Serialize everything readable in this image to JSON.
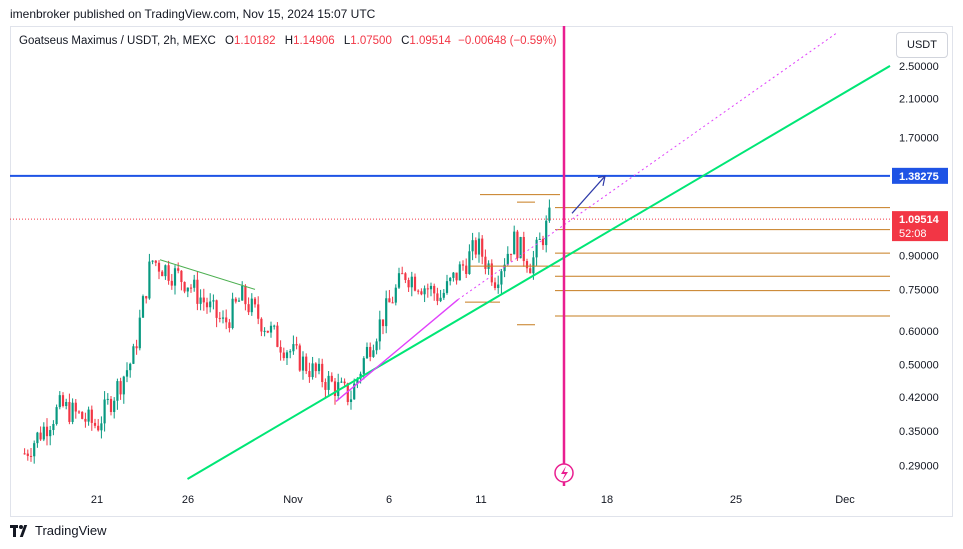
{
  "header": {
    "publisher": "imenbroker published on TradingView.com, Nov 15, 2024 15:07 UTC"
  },
  "legend": {
    "symbol": "Goatseus Maximus / USDT, 2h, MEXC",
    "open_label": "O",
    "open": "1.10182",
    "high_label": "H",
    "high": "1.14906",
    "low_label": "L",
    "low": "1.07500",
    "close_label": "C",
    "close": "1.09514",
    "change": "−0.00648 (−0.59%)"
  },
  "currency_button": "USDT",
  "footer": {
    "brand": "TradingView"
  },
  "colors": {
    "up": "#089981",
    "down": "#f23645",
    "support": "#00e676",
    "resistance": "#1e53e5",
    "fib": "#c67c1f",
    "vline": "#e91e90",
    "channel": "#e040fb",
    "triangle": "#4caf50"
  },
  "chart_data": {
    "type": "candlestick",
    "y_scale": "log",
    "ylim": [
      0.26,
      3.1
    ],
    "y_ticks": [
      "2.50000",
      "2.10000",
      "1.70000",
      "0.90000",
      "0.75000",
      "0.60000",
      "0.50000",
      "0.42000",
      "0.35000",
      "0.29000"
    ],
    "x_ticks": [
      "21",
      "26",
      "Nov",
      "6",
      "11",
      "18",
      "25",
      "Dec"
    ],
    "price_labels": {
      "resistance": "1.38275",
      "last_price": "1.09514",
      "countdown": "52:08"
    },
    "levels": {
      "resistance": 1.38275,
      "last_price": 1.09514,
      "fib": [
        1.165,
        1.035,
        0.912,
        0.805,
        0.745,
        0.65
      ]
    },
    "trendline_support": {
      "from": [
        "Oct 26",
        0.27
      ],
      "to": [
        "Nov 29",
        2.5
      ]
    },
    "candles_summary": [
      [
        "Oct 17",
        0.31
      ],
      [
        "Oct 19",
        0.4
      ],
      [
        "Oct 21",
        0.36
      ],
      [
        "Oct 23",
        0.52
      ],
      [
        "Oct 24",
        0.88
      ],
      [
        "Oct 26",
        0.78
      ],
      [
        "Oct 28",
        0.62
      ],
      [
        "Oct 29",
        0.72
      ],
      [
        "Oct 31",
        0.57
      ],
      [
        "Nov 2",
        0.48
      ],
      [
        "Nov 4",
        0.42
      ],
      [
        "Nov 5",
        0.55
      ],
      [
        "Nov 7",
        0.82
      ],
      [
        "Nov 9",
        0.72
      ],
      [
        "Nov 11",
        0.95
      ],
      [
        "Nov 12",
        0.8
      ],
      [
        "Nov 13",
        0.98
      ],
      [
        "Nov 14",
        0.86
      ],
      [
        "Nov 15",
        1.09514
      ]
    ]
  }
}
